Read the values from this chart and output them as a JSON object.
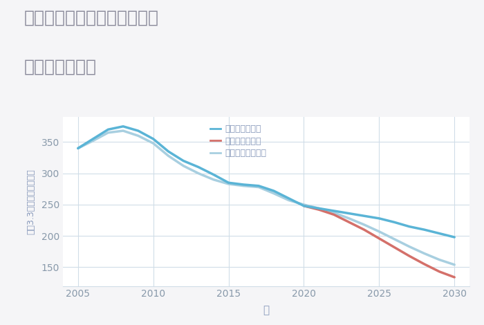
{
  "title_line1": "東京都中央区日本橋人形町の",
  "title_line2": "土地の価格推移",
  "xlabel": "年",
  "ylabel": "坪（3.3㎡）単価（万円）",
  "background_color": "#f5f5f7",
  "plot_bg_color": "#ffffff",
  "xlim": [
    2004,
    2031
  ],
  "ylim": [
    120,
    390
  ],
  "yticks": [
    150,
    200,
    250,
    300,
    350
  ],
  "xticks": [
    2005,
    2010,
    2015,
    2020,
    2025,
    2030
  ],
  "grid_color": "#d0dde8",
  "title_color": "#888899",
  "tick_color": "#8899aa",
  "label_color": "#8899bb",
  "scenarios": {
    "good": {
      "label": "グッドシナリオ",
      "color": "#5ab4d6",
      "linewidth": 2.5,
      "years": [
        2005,
        2006,
        2007,
        2008,
        2009,
        2010,
        2011,
        2012,
        2013,
        2014,
        2015,
        2016,
        2017,
        2018,
        2019,
        2020,
        2021,
        2022,
        2023,
        2024,
        2025,
        2026,
        2027,
        2028,
        2029,
        2030
      ],
      "values": [
        340,
        355,
        370,
        375,
        368,
        355,
        335,
        320,
        310,
        298,
        285,
        282,
        280,
        272,
        260,
        248,
        244,
        240,
        236,
        232,
        228,
        222,
        215,
        210,
        204,
        198
      ]
    },
    "bad": {
      "label": "バッドシナリオ",
      "color": "#d4706a",
      "linewidth": 2.5,
      "years": [
        2020,
        2021,
        2022,
        2023,
        2024,
        2025,
        2026,
        2027,
        2028,
        2029,
        2030
      ],
      "values": [
        248,
        242,
        234,
        222,
        210,
        196,
        182,
        168,
        155,
        143,
        134
      ]
    },
    "normal": {
      "label": "ノーマルシナリオ",
      "color": "#a8cfe0",
      "linewidth": 2.5,
      "years": [
        2005,
        2006,
        2007,
        2008,
        2009,
        2010,
        2011,
        2012,
        2013,
        2014,
        2015,
        2016,
        2017,
        2018,
        2019,
        2020,
        2021,
        2022,
        2023,
        2024,
        2025,
        2026,
        2027,
        2028,
        2029,
        2030
      ],
      "values": [
        340,
        352,
        365,
        368,
        360,
        348,
        328,
        312,
        300,
        290,
        283,
        280,
        278,
        268,
        257,
        250,
        244,
        237,
        228,
        218,
        207,
        195,
        183,
        172,
        162,
        154
      ]
    }
  }
}
